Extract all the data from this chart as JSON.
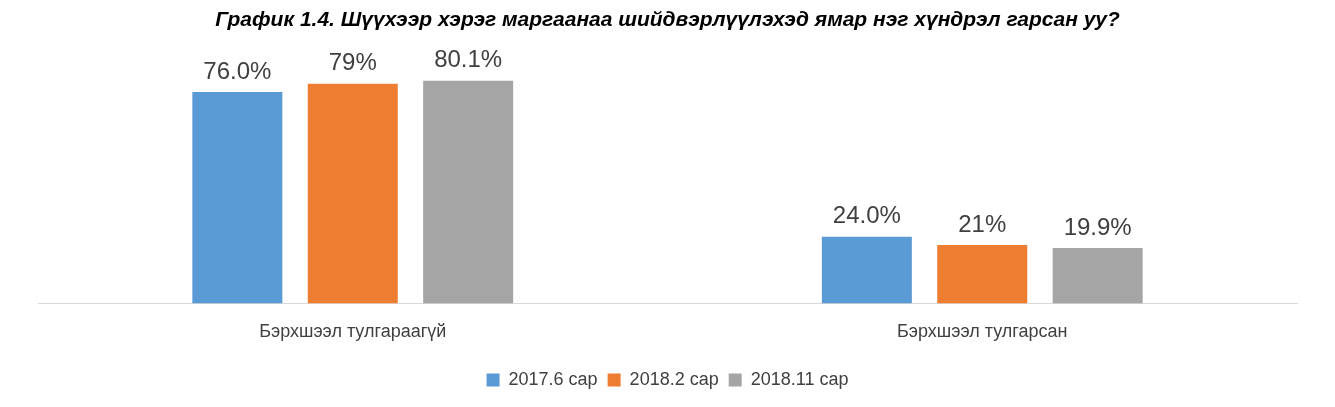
{
  "chart_data": {
    "type": "bar",
    "title": "График 1.4. Шүүхээр хэрэг маргаанаа шийдвэрлүүлэхэд ямар нэг хүндрэл гарсан уу?",
    "categories": [
      "Бэрхшээл тулгараагүй",
      "Бэрхшээл тулгарсан"
    ],
    "series": [
      {
        "name": "2017.6 сар",
        "color": "#5b9bd5",
        "values": [
          76.0,
          24.0
        ],
        "value_labels": [
          "76.0%",
          "24.0%"
        ]
      },
      {
        "name": "2018.2 сар",
        "color": "#ed7d31",
        "values": [
          79,
          21
        ],
        "value_labels": [
          "79%",
          "21%"
        ]
      },
      {
        "name": "2018.11 сар",
        "color": "#a5a5a5",
        "values": [
          80.1,
          19.9
        ],
        "value_labels": [
          "80.1%",
          "19.9%"
        ]
      }
    ],
    "legend": "bottom",
    "grid": false
  }
}
